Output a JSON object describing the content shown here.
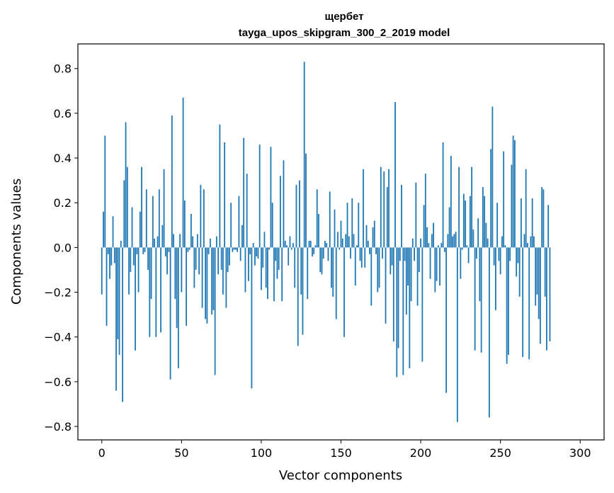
{
  "chart_data": {
    "type": "bar",
    "title": "щербет",
    "subtitle": "tayga_upos_skipgram_300_2_2019 model",
    "xlabel": "Vector components",
    "ylabel": "Components values",
    "xlim": [
      -15,
      315
    ],
    "ylim": [
      -0.86,
      0.91
    ],
    "xticks": [
      0,
      50,
      100,
      150,
      200,
      250,
      300
    ],
    "yticks": [
      -0.8,
      -0.6,
      -0.4,
      -0.2,
      0.0,
      0.2,
      0.4,
      0.6,
      0.8
    ],
    "xtick_labels": [
      "0",
      "50",
      "100",
      "150",
      "200",
      "250",
      "300"
    ],
    "ytick_labels": [
      "−0.8",
      "−0.6",
      "−0.4",
      "−0.2",
      "0.0",
      "0.2",
      "0.4",
      "0.6",
      "0.8"
    ],
    "bar_color": "#1f77b4",
    "values": [
      -0.21,
      0.16,
      0.5,
      -0.35,
      -0.03,
      -0.14,
      -0.08,
      0.14,
      -0.07,
      -0.64,
      -0.41,
      -0.48,
      0.03,
      -0.69,
      0.3,
      0.56,
      0.36,
      -0.21,
      -0.11,
      0.18,
      -0.08,
      -0.46,
      -0.03,
      -0.2,
      0.16,
      0.36,
      -0.03,
      -0.02,
      0.26,
      -0.1,
      -0.4,
      -0.23,
      0.23,
      0.04,
      -0.4,
      0.05,
      0.26,
      -0.38,
      0.1,
      0.35,
      -0.04,
      -0.12,
      -0.02,
      -0.59,
      0.59,
      0.06,
      -0.23,
      -0.36,
      -0.54,
      0.06,
      -0.2,
      0.67,
      0.21,
      -0.35,
      -0.02,
      -0.01,
      0.15,
      0.05,
      -0.18,
      -0.1,
      0.06,
      -0.12,
      0.28,
      -0.27,
      0.26,
      -0.32,
      -0.34,
      -0.03,
      0.04,
      -0.3,
      -0.28,
      -0.57,
      0.05,
      -0.12,
      0.55,
      -0.1,
      -0.21,
      0.47,
      -0.27,
      -0.11,
      -0.08,
      0.2,
      -0.02,
      -0.01,
      -0.01,
      -0.02,
      0.23,
      -0.06,
      0.1,
      0.49,
      -0.2,
      0.33,
      -0.15,
      -0.03,
      -0.63,
      0.02,
      -0.08,
      -0.04,
      -0.05,
      0.46,
      -0.19,
      -0.09,
      0.07,
      -0.18,
      -0.23,
      -0.01,
      0.45,
      0.2,
      -0.24,
      -0.06,
      -0.14,
      -0.1,
      0.32,
      -0.24,
      0.39,
      0.03,
      0.01,
      -0.08,
      0.05,
      -0.01,
      0.02,
      -0.18,
      0.28,
      -0.44,
      0.3,
      -0.21,
      -0.39,
      0.83,
      0.42,
      -0.23,
      0.03,
      0.03,
      -0.04,
      -0.03,
      0.01,
      0.26,
      0.15,
      -0.11,
      -0.12,
      -0.05,
      0.03,
      0.02,
      -0.06,
      0.25,
      -0.18,
      -0.22,
      0.17,
      -0.32,
      0.07,
      -0.01,
      0.12,
      0.04,
      -0.4,
      0.06,
      0.2,
      0.05,
      -0.05,
      0.22,
      0.06,
      -0.17,
      0.01,
      0.2,
      -0.06,
      -0.09,
      0.35,
      -0.09,
      0.1,
      0.03,
      -0.03,
      -0.26,
      0.09,
      0.12,
      -0.03,
      -0.2,
      -0.18,
      0.36,
      -0.05,
      0.34,
      -0.34,
      0.27,
      0.35,
      -0.12,
      -0.08,
      -0.42,
      0.65,
      -0.58,
      -0.45,
      -0.06,
      0.28,
      -0.57,
      -0.06,
      -0.3,
      -0.17,
      -0.54,
      -0.24,
      0.04,
      -0.06,
      0.29,
      -0.26,
      -0.11,
      0.04,
      -0.51,
      0.19,
      0.33,
      0.09,
      0.02,
      -0.14,
      0.06,
      0.11,
      -0.2,
      -0.15,
      0.01,
      -0.17,
      0.02,
      0.47,
      -0.02,
      -0.65,
      0.06,
      0.18,
      0.41,
      0.05,
      0.06,
      0.07,
      -0.78,
      0.36,
      -0.14,
      -0.01,
      0.24,
      0.21,
      0.01,
      -0.07,
      0.23,
      0.36,
      0.08,
      -0.46,
      -0.05,
      0.13,
      -0.24,
      -0.47,
      0.27,
      0.23,
      0.11,
      0.04,
      -0.76,
      0.44,
      0.63,
      -0.08,
      -0.28,
      0.2,
      -0.06,
      -0.12,
      0.05,
      0.43,
      0.01,
      -0.52,
      -0.48,
      -0.06,
      0.37,
      0.5,
      0.48,
      -0.13,
      -0.07,
      -0.22,
      0.22,
      -0.49,
      0.06,
      0.35,
      0.02,
      -0.5,
      0.05,
      0.22,
      0.05,
      -0.26,
      -0.21,
      -0.32,
      -0.43,
      0.27,
      0.26,
      -0.22,
      -0.46,
      0.19,
      -0.42
    ]
  }
}
